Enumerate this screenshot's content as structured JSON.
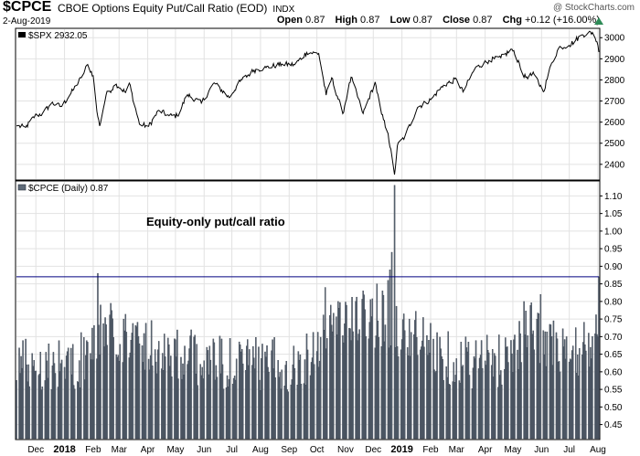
{
  "header": {
    "symbol": "$CPCE",
    "name": "CBOE Options Equity Put/Call Ratio (EOD)",
    "exchange": "INDX",
    "date": "2-Aug-2019",
    "credit": "@ StockCharts.com",
    "open_label": "Open",
    "open": "0.87",
    "high_label": "High",
    "high": "0.87",
    "low_label": "Low",
    "low": "0.87",
    "close_label": "Close",
    "close": "0.87",
    "chg_label": "Chg",
    "chg": "+0.12 (+16.00%)",
    "chg_arrow_icon": "up-triangle-icon",
    "up_color": "#2e8b57"
  },
  "chart_data": [
    {
      "type": "line",
      "legend": "$SPX 2932.05",
      "yticks": [
        2400,
        2500,
        2600,
        2700,
        2800,
        2900,
        3000
      ],
      "ylim": [
        2330,
        3040
      ],
      "line_color": "#000000",
      "x_start": "2017-11-10",
      "x_end": "2019-08-02",
      "points": [
        [
          "2017-11-10",
          2582
        ],
        [
          "2017-11-20",
          2575
        ],
        [
          "2017-11-30",
          2630
        ],
        [
          "2017-12-08",
          2640
        ],
        [
          "2017-12-18",
          2690
        ],
        [
          "2017-12-29",
          2674
        ],
        [
          "2018-01-10",
          2750
        ],
        [
          "2018-01-19",
          2810
        ],
        [
          "2018-01-26",
          2873
        ],
        [
          "2018-02-01",
          2820
        ],
        [
          "2018-02-05",
          2650
        ],
        [
          "2018-02-08",
          2582
        ],
        [
          "2018-02-15",
          2730
        ],
        [
          "2018-02-26",
          2780
        ],
        [
          "2018-03-08",
          2740
        ],
        [
          "2018-03-12",
          2785
        ],
        [
          "2018-03-23",
          2590
        ],
        [
          "2018-04-02",
          2580
        ],
        [
          "2018-04-13",
          2656
        ],
        [
          "2018-04-24",
          2630
        ],
        [
          "2018-05-03",
          2630
        ],
        [
          "2018-05-14",
          2730
        ],
        [
          "2018-05-29",
          2690
        ],
        [
          "2018-06-12",
          2786
        ],
        [
          "2018-06-28",
          2716
        ],
        [
          "2018-07-10",
          2793
        ],
        [
          "2018-07-25",
          2846
        ],
        [
          "2018-08-07",
          2858
        ],
        [
          "2018-08-24",
          2875
        ],
        [
          "2018-09-07",
          2872
        ],
        [
          "2018-09-20",
          2930
        ],
        [
          "2018-10-03",
          2925
        ],
        [
          "2018-10-11",
          2728
        ],
        [
          "2018-10-17",
          2810
        ],
        [
          "2018-10-29",
          2640
        ],
        [
          "2018-11-07",
          2813
        ],
        [
          "2018-11-20",
          2641
        ],
        [
          "2018-12-03",
          2790
        ],
        [
          "2018-12-10",
          2637
        ],
        [
          "2018-12-17",
          2545
        ],
        [
          "2018-12-24",
          2351
        ],
        [
          "2018-12-27",
          2488
        ],
        [
          "2019-01-04",
          2531
        ],
        [
          "2019-01-18",
          2670
        ],
        [
          "2019-02-01",
          2706
        ],
        [
          "2019-02-15",
          2775
        ],
        [
          "2019-03-01",
          2803
        ],
        [
          "2019-03-08",
          2743
        ],
        [
          "2019-03-21",
          2854
        ],
        [
          "2019-04-05",
          2892
        ],
        [
          "2019-04-18",
          2905
        ],
        [
          "2019-04-30",
          2945
        ],
        [
          "2019-05-08",
          2880
        ],
        [
          "2019-05-13",
          2812
        ],
        [
          "2019-05-24",
          2826
        ],
        [
          "2019-06-03",
          2744
        ],
        [
          "2019-06-12",
          2880
        ],
        [
          "2019-06-20",
          2954
        ],
        [
          "2019-07-01",
          2964
        ],
        [
          "2019-07-15",
          3014
        ],
        [
          "2019-07-26",
          3025
        ],
        [
          "2019-07-31",
          2980
        ],
        [
          "2019-08-02",
          2932
        ]
      ]
    },
    {
      "type": "bar",
      "legend": "$CPCE (Daily) 0.87",
      "annotation": "Equity-only put/call ratio",
      "yticks": [
        0.45,
        0.5,
        0.55,
        0.6,
        0.65,
        0.7,
        0.75,
        0.8,
        0.85,
        0.9,
        0.95,
        1.0,
        1.05,
        1.1
      ],
      "ytick_labels": [
        "0.45",
        "0.50",
        "0.55",
        "0.60",
        "0.65",
        "0.70",
        "0.75",
        "0.80",
        "0.85",
        "0.90",
        "0.95",
        "1.00",
        "1.05",
        "1.10"
      ],
      "ylim": [
        0.41,
        1.14
      ],
      "baseline": 0.41,
      "bar_color": "#5e6a78",
      "bar_edge": "#2d3440",
      "reference_line": 0.87,
      "reference_color": "#000080",
      "x_start": "2017-11-10",
      "x_end": "2019-08-02",
      "spikes": [
        [
          "2018-02-06",
          0.88
        ],
        [
          "2018-02-09",
          0.79
        ],
        [
          "2018-10-10",
          0.84
        ],
        [
          "2018-10-24",
          0.8
        ],
        [
          "2018-11-20",
          0.83
        ],
        [
          "2018-12-05",
          0.85
        ],
        [
          "2018-12-11",
          0.83
        ],
        [
          "2018-12-17",
          0.86
        ],
        [
          "2018-12-19",
          0.89
        ],
        [
          "2018-12-21",
          0.94
        ],
        [
          "2018-12-24",
          1.13
        ],
        [
          "2019-05-13",
          0.8
        ],
        [
          "2019-05-31",
          0.82
        ],
        [
          "2019-08-02",
          0.87
        ]
      ],
      "level_anchors": [
        [
          "2017-11-10",
          0.63
        ],
        [
          "2018-01-15",
          0.62
        ],
        [
          "2018-02-15",
          0.72
        ],
        [
          "2018-04-01",
          0.68
        ],
        [
          "2018-06-01",
          0.63
        ],
        [
          "2018-08-01",
          0.62
        ],
        [
          "2018-09-15",
          0.62
        ],
        [
          "2018-10-15",
          0.74
        ],
        [
          "2018-12-01",
          0.75
        ],
        [
          "2019-01-15",
          0.7
        ],
        [
          "2019-03-01",
          0.63
        ],
        [
          "2019-04-15",
          0.63
        ],
        [
          "2019-05-20",
          0.72
        ],
        [
          "2019-07-01",
          0.64
        ],
        [
          "2019-08-02",
          0.7
        ]
      ]
    }
  ],
  "x_axis": {
    "labels": [
      {
        "date": "2017-12-01",
        "text": "Dec",
        "bold": false
      },
      {
        "date": "2018-01-01",
        "text": "2018",
        "bold": true
      },
      {
        "date": "2018-02-01",
        "text": "Feb",
        "bold": false
      },
      {
        "date": "2018-03-01",
        "text": "Mar",
        "bold": false
      },
      {
        "date": "2018-04-01",
        "text": "Apr",
        "bold": false
      },
      {
        "date": "2018-05-01",
        "text": "May",
        "bold": false
      },
      {
        "date": "2018-06-01",
        "text": "Jun",
        "bold": false
      },
      {
        "date": "2018-07-01",
        "text": "Jul",
        "bold": false
      },
      {
        "date": "2018-08-01",
        "text": "Aug",
        "bold": false
      },
      {
        "date": "2018-09-01",
        "text": "Sep",
        "bold": false
      },
      {
        "date": "2018-10-01",
        "text": "Oct",
        "bold": false
      },
      {
        "date": "2018-11-01",
        "text": "Nov",
        "bold": false
      },
      {
        "date": "2018-12-01",
        "text": "Dec",
        "bold": false
      },
      {
        "date": "2019-01-01",
        "text": "2019",
        "bold": true
      },
      {
        "date": "2019-02-01",
        "text": "Feb",
        "bold": false
      },
      {
        "date": "2019-03-01",
        "text": "Mar",
        "bold": false
      },
      {
        "date": "2019-04-01",
        "text": "Apr",
        "bold": false
      },
      {
        "date": "2019-05-01",
        "text": "May",
        "bold": false
      },
      {
        "date": "2019-06-01",
        "text": "Jun",
        "bold": false
      },
      {
        "date": "2019-07-01",
        "text": "Jul",
        "bold": false
      },
      {
        "date": "2019-08-01",
        "text": "Aug",
        "bold": false
      }
    ]
  }
}
